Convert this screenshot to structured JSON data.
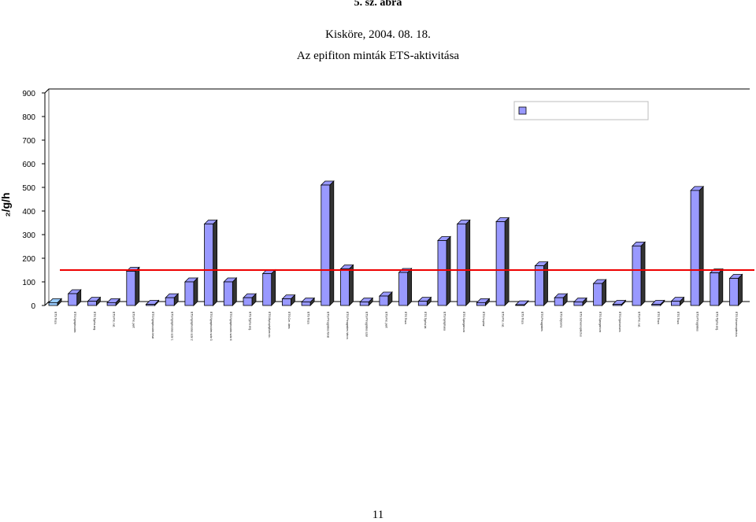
{
  "figure_label": "5. sz. ábra",
  "page_number": "11",
  "chart_data": {
    "type": "bar",
    "title": "Az epifiton minták ETS-aktivitása",
    "subtitle": "Kisköre, 2004. 08. 18.",
    "ylabel": "₂/g/h",
    "xlabel": "",
    "ylim": [
      0,
      900
    ],
    "yticks": [
      0,
      100,
      200,
      300,
      400,
      500,
      600,
      700,
      800,
      900
    ],
    "grid": false,
    "legend": "top-right",
    "reference_line": 140,
    "colors": {
      "bar": "#9999ff",
      "bar_first": "#99ccff",
      "line": "#ee0000"
    },
    "categories": [
      "ETS Tisza",
      "ETS Nymphoides",
      "ETS Typha ang.",
      "ETS Pot. nat.",
      "ETS Pot. perf.",
      "ETS Nymphoides leszt",
      "ETS Nymphoides szár 1",
      "ETS Nymphoides szár 2",
      "ETS Nymphoides szár 3",
      "ETS Nymphoides szár 4",
      "ETS Typha ang.",
      "ETS Myriophyllum sic.",
      "ETS Cer. dem.",
      "ETS Tisza",
      "ETS Phragmites fonál",
      "ETS Phragmites háncs",
      "ETS Phragmites szár",
      "ETS Pot. perf.",
      "ETS Tisza",
      "ETS Typha lat.",
      "ETS Nymphaea",
      "ETS Sparganium",
      "ETS Nuphar",
      "ETS Pot. nat.",
      "ETS Tisza",
      "ETS Phragmites",
      "ETS Glyceria",
      "ETS Schoenoplectus",
      "ETS Sparganium",
      "ETS Hydrocharis",
      "ETS Pot. nat.",
      "ETS Tisza",
      "ETS Tisza",
      "ETS Phragmites",
      "ETS Typha ang.",
      "ETS Schoenoplectus"
    ],
    "values": [
      12,
      50,
      18,
      12,
      145,
      5,
      33,
      100,
      345,
      100,
      33,
      135,
      28,
      15,
      510,
      155,
      15,
      40,
      140,
      18,
      275,
      345,
      12,
      355,
      3,
      168,
      33,
      15,
      93,
      5,
      252,
      5,
      18,
      487,
      138,
      115
    ]
  }
}
